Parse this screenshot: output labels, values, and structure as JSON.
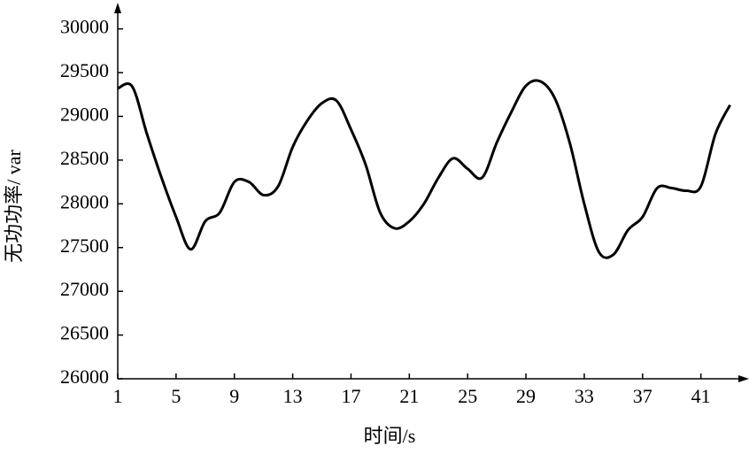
{
  "chart_data": {
    "type": "line",
    "xlabel": "时间/s",
    "ylabel": "无功功率/ var",
    "x": [
      1,
      2,
      3,
      4,
      5,
      6,
      7,
      8,
      9,
      10,
      11,
      12,
      13,
      14,
      15,
      16,
      17,
      18,
      19,
      20,
      21,
      22,
      23,
      24,
      25,
      26,
      27,
      28,
      29,
      30,
      31,
      32,
      33,
      34,
      35,
      36,
      37,
      38,
      39,
      40,
      41,
      42,
      43
    ],
    "series": [
      {
        "name": "无功功率",
        "color": "#000000",
        "values": [
          29320,
          29340,
          28800,
          28300,
          27850,
          27480,
          27800,
          27900,
          28250,
          28250,
          28100,
          28200,
          28650,
          28950,
          29150,
          29180,
          28850,
          28450,
          27900,
          27720,
          27800,
          28000,
          28300,
          28520,
          28400,
          28300,
          28700,
          29050,
          29350,
          29400,
          29200,
          28700,
          28000,
          27450,
          27420,
          27700,
          27850,
          28180,
          28180,
          28150,
          28200,
          28800,
          29130
        ]
      }
    ],
    "xlim": [
      1,
      44.3
    ],
    "ylim": [
      26000,
      30300
    ],
    "xticks": [
      1,
      5,
      9,
      13,
      17,
      21,
      25,
      29,
      33,
      37,
      41
    ],
    "yticks": [
      26000,
      26500,
      27000,
      27500,
      28000,
      28500,
      29000,
      29500,
      30000
    ]
  }
}
